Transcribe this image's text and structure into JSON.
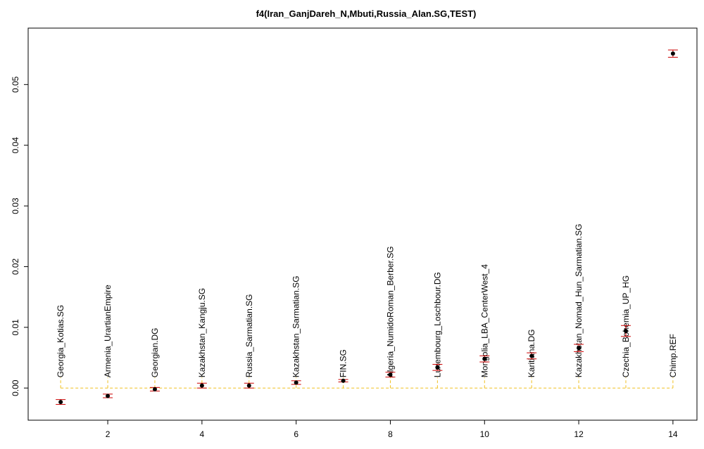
{
  "chart_data": {
    "type": "errorbar",
    "title": "f4(Iran_GanjDareh_N,Mbuti,Russia_Alan.SG,TEST)",
    "x": [
      1,
      2,
      3,
      4,
      5,
      6,
      7,
      8,
      9,
      10,
      11,
      12,
      13,
      14
    ],
    "categories": [
      "Georgia_Kotias.SG",
      "Armenia_UrartianEmpire",
      "Georgian.DG",
      "Kazakhstan_Kangju.SG",
      "Russia_Sarmatian.SG",
      "Kazakhstan_Sarmatian.SG",
      "FIN.SG",
      "Algeria_NumidoRoman_Berber.SG",
      "Luxembourg_Loschbour.DG",
      "Mongolia_LBA_CenterWest_4",
      "Karitiana.DG",
      "Kazakhstan_Nomad_Hun_Sarmatian.SG",
      "Czechia_Bohemia_UP_HG",
      "Chimp.REF"
    ],
    "values": [
      -0.0023,
      -0.0013,
      -0.0002,
      0.0004,
      0.0004,
      0.0009,
      0.0012,
      0.0022,
      0.0034,
      0.0048,
      0.0053,
      0.0066,
      0.0094,
      0.0551
    ],
    "errors": [
      0.0004,
      0.0003,
      0.0003,
      0.0004,
      0.0004,
      0.0003,
      0.0002,
      0.0004,
      0.0005,
      0.0005,
      0.0005,
      0.0006,
      0.0009,
      0.0006
    ],
    "color": "#000000",
    "error_color": "#cc0000",
    "reference_color": "#f0c020",
    "xlim": [
      0.31,
      14.51
    ],
    "ylim": [
      -0.0053,
      0.0593
    ],
    "xticks": [
      2,
      4,
      6,
      8,
      10,
      12,
      14
    ],
    "yticks": [
      {
        "value": 0,
        "label": "0.00"
      },
      {
        "value": 0.01,
        "label": "0.01"
      },
      {
        "value": 0.02,
        "label": "0.02"
      },
      {
        "value": 0.03,
        "label": "0.03"
      },
      {
        "value": 0.04,
        "label": "0.04"
      },
      {
        "value": 0.05,
        "label": "0.05"
      }
    ]
  }
}
